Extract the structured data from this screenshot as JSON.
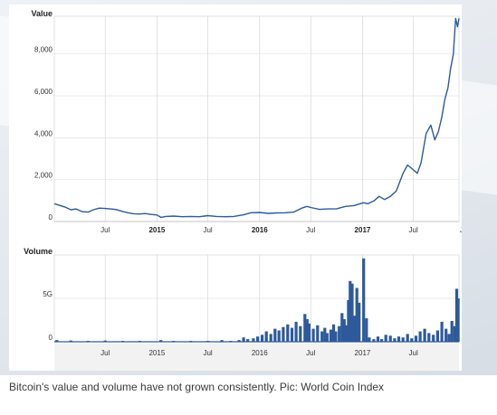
{
  "caption": "Bitcoin's value and volume have not grown consistently. Pic: World Coin Index",
  "chart_data": [
    {
      "type": "line",
      "ylabel": "Value",
      "ylim": [
        0,
        9800
      ],
      "yticks": [
        0,
        2000,
        4000,
        6000,
        8000
      ],
      "ytick_labels": [
        "0",
        "2,000",
        "4,000",
        "6,000",
        "8,000"
      ],
      "xlim": [
        "2014-01-01",
        "2017-12-10"
      ],
      "xticks": [
        {
          "date": "2014-07-01",
          "label": "Jul",
          "bold": false
        },
        {
          "date": "2015-01-01",
          "label": "2015",
          "bold": true
        },
        {
          "date": "2015-07-01",
          "label": "Jul",
          "bold": false
        },
        {
          "date": "2016-01-01",
          "label": "2016",
          "bold": true
        },
        {
          "date": "2016-07-01",
          "label": "Jul",
          "bold": false
        },
        {
          "date": "2017-01-01",
          "label": "2017",
          "bold": true
        },
        {
          "date": "2017-07-01",
          "label": "Jul",
          "bold": false
        },
        {
          "date": "2017-12-10",
          "label": "J",
          "bold": false
        }
      ],
      "grid": true,
      "line_color": "#2e5a9c",
      "series": [
        {
          "x": [
            "2014-01-01",
            "2014-01-20",
            "2014-02-10",
            "2014-03-01",
            "2014-03-20",
            "2014-04-10",
            "2014-05-01",
            "2014-05-20",
            "2014-06-10",
            "2014-07-01",
            "2014-07-20",
            "2014-08-10",
            "2014-09-01",
            "2014-09-20",
            "2014-10-10",
            "2014-11-01",
            "2014-11-20",
            "2014-12-10",
            "2015-01-01",
            "2015-01-15",
            "2015-02-01",
            "2015-03-01",
            "2015-04-01",
            "2015-05-01",
            "2015-06-01",
            "2015-07-01",
            "2015-08-01",
            "2015-09-01",
            "2015-10-01",
            "2015-11-05",
            "2015-12-01",
            "2016-01-01",
            "2016-02-01",
            "2016-03-01",
            "2016-04-01",
            "2016-05-01",
            "2016-06-01",
            "2016-06-18",
            "2016-07-01",
            "2016-08-01",
            "2016-09-01",
            "2016-10-01",
            "2016-11-01",
            "2016-12-01",
            "2017-01-05",
            "2017-01-20",
            "2017-02-10",
            "2017-03-01",
            "2017-03-20",
            "2017-04-10",
            "2017-05-01",
            "2017-05-25",
            "2017-06-10",
            "2017-06-28",
            "2017-07-15",
            "2017-07-28",
            "2017-08-15",
            "2017-09-01",
            "2017-09-15",
            "2017-09-28",
            "2017-10-10",
            "2017-10-20",
            "2017-11-01",
            "2017-11-10",
            "2017-11-20",
            "2017-11-28",
            "2017-12-05",
            "2017-12-10"
          ],
          "y": [
            850,
            770,
            680,
            560,
            600,
            470,
            450,
            560,
            640,
            620,
            600,
            570,
            480,
            420,
            370,
            360,
            380,
            340,
            310,
            200,
            240,
            260,
            230,
            240,
            230,
            280,
            240,
            230,
            240,
            320,
            420,
            430,
            390,
            410,
            420,
            450,
            650,
            720,
            670,
            580,
            600,
            610,
            720,
            760,
            900,
            850,
            980,
            1200,
            1050,
            1200,
            1450,
            2300,
            2700,
            2500,
            2300,
            2800,
            4200,
            4600,
            3900,
            4300,
            5000,
            5800,
            6400,
            7300,
            8000,
            9700,
            9300,
            9700
          ]
        }
      ]
    },
    {
      "type": "bar",
      "ylabel": "Volume",
      "ylim": [
        0,
        10
      ],
      "yticks": [
        0,
        5
      ],
      "ytick_labels": [
        "0",
        "5G"
      ],
      "xlim": [
        "2014-01-01",
        "2017-12-10"
      ],
      "xticks": [
        {
          "date": "2014-07-01",
          "label": "Jul",
          "bold": false
        },
        {
          "date": "2015-01-01",
          "label": "2015",
          "bold": false
        },
        {
          "date": "2015-07-01",
          "label": "Jul",
          "bold": false
        },
        {
          "date": "2016-01-01",
          "label": "2016",
          "bold": false
        },
        {
          "date": "2016-07-01",
          "label": "Jul",
          "bold": false
        },
        {
          "date": "2017-01-01",
          "label": "2017",
          "bold": false
        },
        {
          "date": "2017-07-01",
          "label": "Jul",
          "bold": false
        }
      ],
      "grid": true,
      "bar_color": "#2e5a9c",
      "series": [
        {
          "x": [
            "2014-01-10",
            "2014-03-01",
            "2014-05-01",
            "2014-07-01",
            "2014-09-01",
            "2014-11-01",
            "2015-01-15",
            "2015-03-01",
            "2015-05-01",
            "2015-07-01",
            "2015-08-20",
            "2015-09-20",
            "2015-10-20",
            "2015-11-05",
            "2015-11-20",
            "2015-12-10",
            "2015-12-25",
            "2016-01-10",
            "2016-01-25",
            "2016-02-10",
            "2016-02-25",
            "2016-03-10",
            "2016-03-25",
            "2016-04-10",
            "2016-04-25",
            "2016-05-10",
            "2016-05-25",
            "2016-06-10",
            "2016-06-18",
            "2016-06-25",
            "2016-07-10",
            "2016-07-25",
            "2016-08-10",
            "2016-08-20",
            "2016-08-28",
            "2016-09-10",
            "2016-09-20",
            "2016-09-28",
            "2016-10-10",
            "2016-10-20",
            "2016-10-28",
            "2016-11-05",
            "2016-11-12",
            "2016-11-18",
            "2016-11-25",
            "2016-12-05",
            "2016-12-12",
            "2016-12-20",
            "2017-01-05",
            "2017-01-15",
            "2017-01-25",
            "2017-02-10",
            "2017-02-25",
            "2017-03-10",
            "2017-03-25",
            "2017-04-10",
            "2017-04-25",
            "2017-05-10",
            "2017-05-25",
            "2017-06-10",
            "2017-06-25",
            "2017-07-10",
            "2017-07-25",
            "2017-08-10",
            "2017-08-25",
            "2017-09-10",
            "2017-09-25",
            "2017-10-10",
            "2017-10-25",
            "2017-11-05",
            "2017-11-15",
            "2017-11-25",
            "2017-12-02",
            "2017-12-07"
          ],
          "y": [
            0.2,
            0.15,
            0.1,
            0.15,
            0.1,
            0.1,
            0.2,
            0.1,
            0.1,
            0.1,
            0.2,
            0.1,
            0.2,
            0.5,
            0.3,
            0.4,
            0.6,
            0.8,
            1.2,
            0.9,
            1.5,
            1.3,
            1.7,
            2.0,
            1.6,
            2.3,
            1.8,
            3.2,
            2.6,
            2.1,
            1.5,
            1.9,
            1.2,
            1.6,
            1.0,
            1.4,
            2.0,
            1.2,
            1.8,
            3.3,
            2.6,
            1.9,
            4.8,
            7.0,
            6.7,
            3.0,
            6.2,
            4.5,
            9.6,
            2.7,
            0.5,
            0.3,
            0.6,
            0.3,
            0.8,
            0.7,
            0.4,
            0.6,
            0.5,
            0.9,
            0.4,
            0.7,
            1.2,
            1.5,
            1.0,
            0.8,
            1.3,
            2.3,
            1.5,
            0.9,
            2.4,
            1.8,
            6.1,
            5.0
          ]
        }
      ]
    }
  ]
}
